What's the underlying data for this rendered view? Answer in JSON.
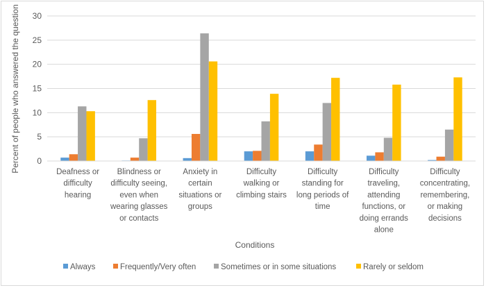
{
  "chart_data": {
    "type": "bar",
    "title": "",
    "xlabel": "Conditions",
    "ylabel": "Percent of people who answered the question",
    "ylim": [
      0,
      30
    ],
    "yticks": [
      0,
      5,
      10,
      15,
      20,
      25,
      30
    ],
    "grid": true,
    "legend_position": "bottom",
    "categories": [
      [
        "Deafness or",
        "difficulty",
        "hearing"
      ],
      [
        "Blindness or",
        "difficulty seeing,",
        "even when",
        "wearing glasses",
        "or contacts"
      ],
      [
        "Anxiety in",
        "certain",
        "situations or",
        "groups"
      ],
      [
        "Difficulty",
        "walking or",
        "climbing stairs"
      ],
      [
        "Difficulty",
        "standing for",
        "long periods of",
        "time"
      ],
      [
        "Difficulty",
        "traveling,",
        "attending",
        "functions, or",
        "doing errands",
        "alone"
      ],
      [
        "Difficulty",
        "concentrating,",
        "remembering,",
        "or making",
        "decisions"
      ]
    ],
    "series": [
      {
        "name": "Always",
        "color": "#5b9bd5",
        "values": [
          0.7,
          0.1,
          0.6,
          2.0,
          2.0,
          1.1,
          0.2
        ]
      },
      {
        "name": "Frequently/Very often",
        "color": "#ed7d31",
        "values": [
          1.4,
          0.7,
          5.6,
          2.1,
          3.4,
          1.8,
          0.9
        ]
      },
      {
        "name": "Sometimes or in some situations",
        "color": "#a5a5a5",
        "values": [
          11.3,
          4.7,
          26.4,
          8.2,
          12.0,
          4.8,
          6.5
        ]
      },
      {
        "name": "Rarely or seldom",
        "color": "#ffc000",
        "values": [
          10.3,
          12.6,
          20.6,
          13.9,
          17.2,
          15.8,
          17.3
        ]
      }
    ]
  }
}
